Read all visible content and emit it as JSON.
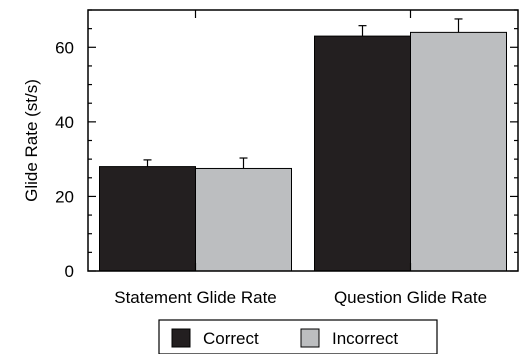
{
  "chart_data": {
    "type": "bar",
    "title": "",
    "xlabel": "",
    "ylabel": "Glide Rate (st/s)",
    "categories": [
      "Statement Glide Rate",
      "Question Glide Rate"
    ],
    "series": [
      {
        "name": "Correct",
        "color": "#231f20",
        "values": [
          28,
          63
        ],
        "errors": [
          1.8,
          2.8
        ]
      },
      {
        "name": "Incorrect",
        "color": "#bcbec0",
        "values": [
          27.5,
          64
        ],
        "errors": [
          2.8,
          3.6
        ]
      }
    ],
    "ylim": [
      0,
      70
    ],
    "yticks": [
      0,
      20,
      40,
      60
    ],
    "y_minor_step": 5,
    "grid": false,
    "legend_position": "bottom-center"
  }
}
